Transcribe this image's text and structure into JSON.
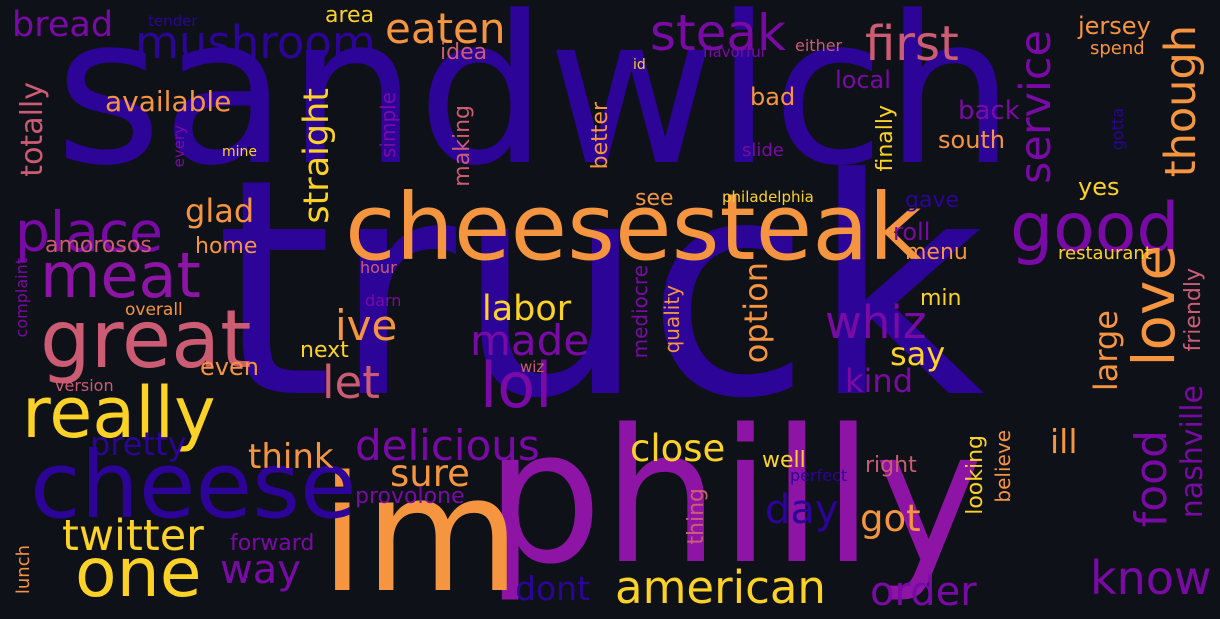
{
  "background": "#0e1117",
  "palette": {
    "indigo": "#2c0497",
    "violet": "#7a0aa6",
    "purple": "#8e14a5",
    "pink": "#cc5c74",
    "orange": "#f69540",
    "yellow": "#fcd226"
  },
  "words": {
    "sandwich": "sandwich",
    "truck": "truck",
    "philly": "philly",
    "im": "im",
    "cheesesteak": "cheesesteak",
    "cheese": "cheese",
    "great": "great",
    "really": "really",
    "one": "one",
    "meat": "meat",
    "place": "place",
    "steak": "steak",
    "mushroom": "mushroom",
    "eaten": "eaten",
    "first": "first",
    "bread": "bread",
    "good": "good",
    "love": "love",
    "lol": "lol",
    "american": "american",
    "know": "know",
    "twitter": "twitter",
    "delicious": "delicious",
    "whiz": "whiz",
    "made": "made",
    "ive": "ive",
    "let": "let",
    "service": "service",
    "though": "though",
    "food": "food",
    "order": "order",
    "way": "way",
    "sure": "sure",
    "got": "got",
    "day": "day",
    "close": "close",
    "think": "think",
    "pretty": "pretty",
    "dont": "dont",
    "labor": "labor",
    "glad": "glad",
    "available": "available",
    "totally": "totally",
    "straight": "straight",
    "option": "option",
    "kind": "kind",
    "say": "say",
    "large": "large",
    "ill": "ill",
    "nashville": "nashville",
    "friendly": "friendly",
    "amorosos": "amorosos",
    "home": "home",
    "back": "back",
    "south": "south",
    "bad": "bad",
    "local": "local",
    "jersey": "jersey",
    "spend": "spend",
    "area": "area",
    "idea": "idea",
    "tender": "tender",
    "flavorful": "flavorful",
    "either": "either",
    "id": "id",
    "mine": "mine",
    "every": "every",
    "simple": "simple",
    "making": "making",
    "better": "better",
    "slide": "slide",
    "gotta": "gotta",
    "philadelphia": "philadelphia",
    "see": "see",
    "finally": "finally",
    "gave": "gave",
    "roll": "roll",
    "menu": "menu",
    "yes": "yes",
    "restaurant": "restaurant",
    "min": "min",
    "hour": "hour",
    "overall": "overall",
    "darn": "darn",
    "complaint": "complaint",
    "next": "next",
    "even": "even",
    "version": "version",
    "wiz": "wiz",
    "mediocre": "mediocre",
    "quality": "quality",
    "provolone": "provolone",
    "forward": "forward",
    "well": "well",
    "perfect": "perfect",
    "right": "right",
    "thing": "thing",
    "looking": "looking",
    "believe": "believe",
    "lunch": "lunch"
  }
}
